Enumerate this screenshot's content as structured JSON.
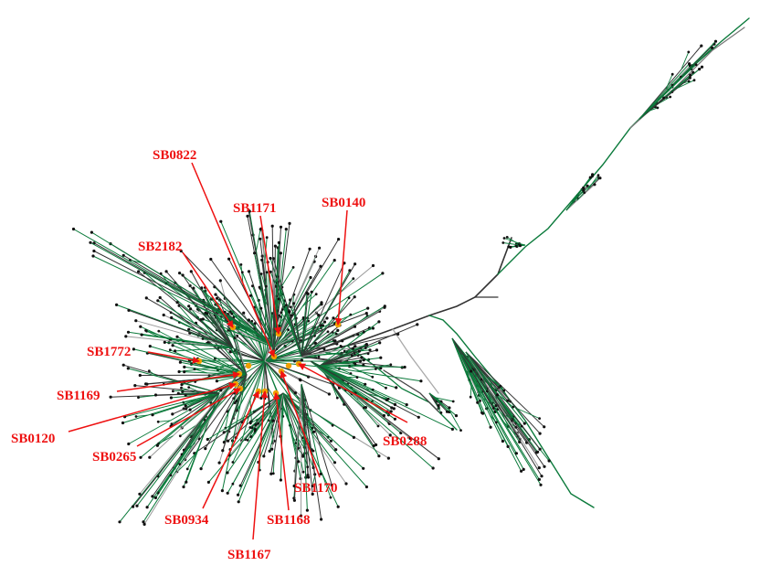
{
  "diagram": {
    "type": "phylogenetic-network",
    "colors": {
      "green_branch": "#0b7a3b",
      "dark_branch": "#333333",
      "grey_branch": "#9a9a9a",
      "node": "#111111",
      "highlight_node": "#f0a000",
      "label_arrow": "#ee1111"
    },
    "labels": [
      "SB0822",
      "SB1171",
      "SB0140",
      "SB2182",
      "SB1772",
      "SB1169",
      "SB0120",
      "SB0265",
      "SB0934",
      "SB1167",
      "SB1168",
      "SB1170",
      "SB0288"
    ]
  }
}
